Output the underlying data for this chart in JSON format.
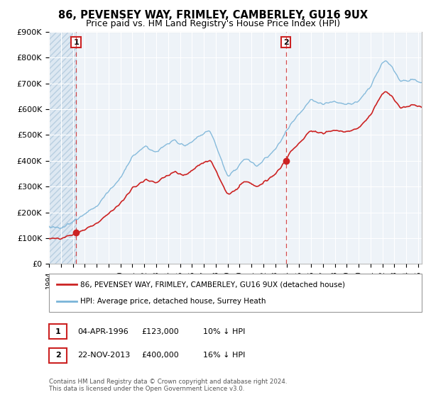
{
  "title": "86, PEVENSEY WAY, FRIMLEY, CAMBERLEY, GU16 9UX",
  "subtitle": "Price paid vs. HM Land Registry's House Price Index (HPI)",
  "ylim": [
    0,
    900000
  ],
  "yticks": [
    0,
    100000,
    200000,
    300000,
    400000,
    500000,
    600000,
    700000,
    800000,
    900000
  ],
  "ytick_labels": [
    "£0",
    "£100K",
    "£200K",
    "£300K",
    "£400K",
    "£500K",
    "£600K",
    "£700K",
    "£800K",
    "£900K"
  ],
  "legend_line1": "86, PEVENSEY WAY, FRIMLEY, CAMBERLEY, GU16 9UX (detached house)",
  "legend_line2": "HPI: Average price, detached house, Surrey Heath",
  "annotation1_date": "04-APR-1996",
  "annotation1_price": "£123,000",
  "annotation1_hpi": "10% ↓ HPI",
  "annotation2_date": "22-NOV-2013",
  "annotation2_price": "£400,000",
  "annotation2_hpi": "16% ↓ HPI",
  "footer": "Contains HM Land Registry data © Crown copyright and database right 2024.\nThis data is licensed under the Open Government Licence v3.0.",
  "vline1_x": 1996.27,
  "vline2_x": 2013.9,
  "sale1_x": 1996.27,
  "sale1_y": 123000,
  "sale2_x": 2013.9,
  "sale2_y": 400000,
  "hpi_color": "#7ab4d8",
  "price_color": "#cc2222",
  "plot_bg": "#eef3f8",
  "xmin": 1994,
  "xmax": 2025.3
}
